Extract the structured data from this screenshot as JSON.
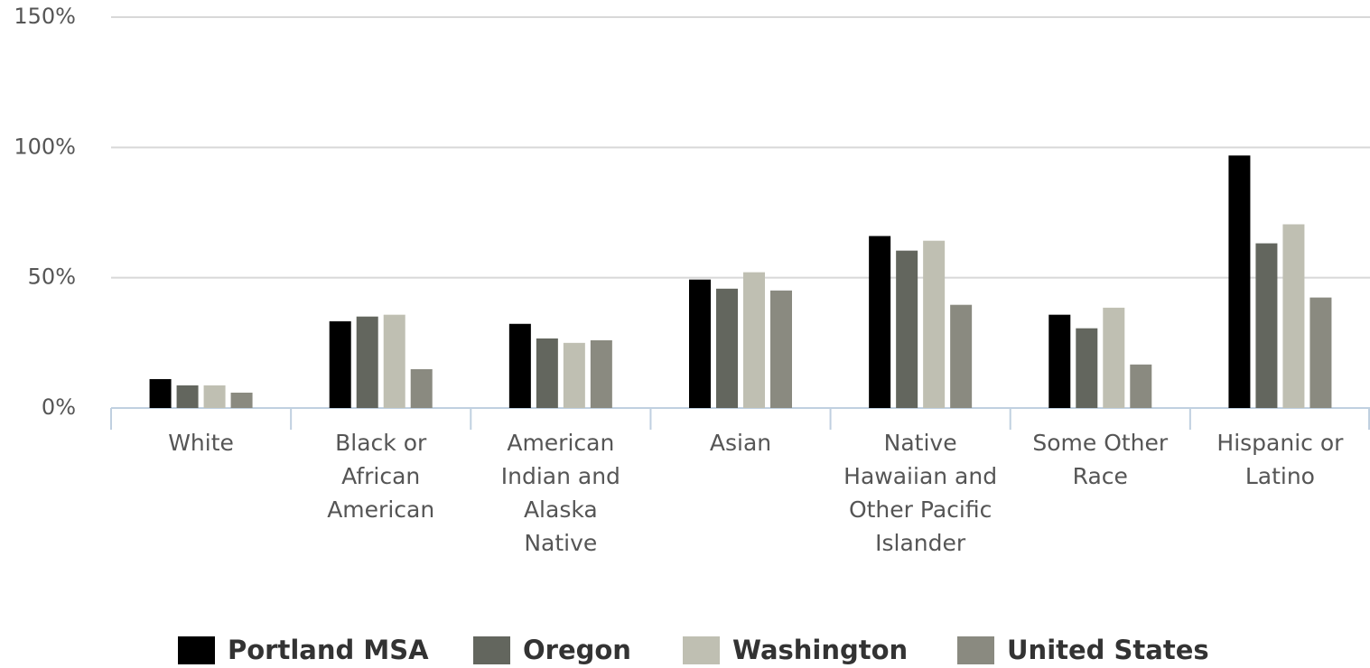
{
  "chart_data": {
    "type": "bar",
    "categories": [
      "White",
      "Black or African American",
      "American Indian and Alaska Native",
      "Asian",
      "Native Hawaiian and Other Pacific Islander",
      "Some Other Race",
      "Hispanic or Latino"
    ],
    "series": [
      {
        "name": "Portland MSA",
        "color": "#000000",
        "values": [
          11.1,
          33.3,
          32.3,
          49.3,
          66,
          35.8,
          96.9
        ]
      },
      {
        "name": "Oregon",
        "color": "#63665e",
        "values": [
          8.7,
          35.1,
          26.7,
          45.8,
          60.4,
          30.6,
          63.2
        ]
      },
      {
        "name": "Washington",
        "color": "#bfbfb2",
        "values": [
          8.7,
          35.8,
          25,
          52.1,
          64.2,
          38.5,
          70.5
        ]
      },
      {
        "name": "United States",
        "color": "#8a8a80",
        "values": [
          5.9,
          14.9,
          26,
          45.1,
          39.6,
          16.7,
          42.4
        ]
      }
    ],
    "ylim": [
      0,
      150
    ],
    "yticks": [
      {
        "value": 0,
        "label": "0%"
      },
      {
        "value": 50,
        "label": "50%"
      },
      {
        "value": 100,
        "label": "100%"
      },
      {
        "value": 150,
        "label": "150%"
      }
    ],
    "grid": true,
    "legend": "bottom"
  }
}
